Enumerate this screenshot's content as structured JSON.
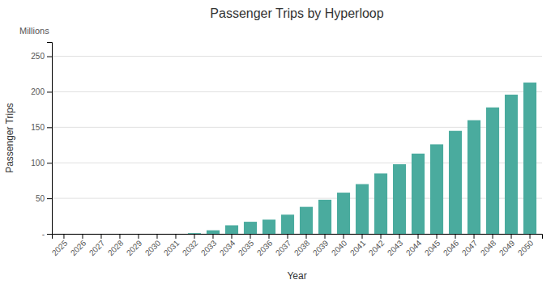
{
  "chart_data": {
    "type": "bar",
    "title": "Passenger Trips by Hyperloop",
    "x_label": "Year",
    "y_label": "Passenger Trips",
    "annotations": [
      "Millions"
    ],
    "categories": [
      "2025",
      "2026",
      "2027",
      "2028",
      "2029",
      "2030",
      "2031",
      "2032",
      "2033",
      "2034",
      "2035",
      "2036",
      "2037",
      "2038",
      "2039",
      "2040",
      "2041",
      "2042",
      "2043",
      "2044",
      "2045",
      "2046",
      "2047",
      "2048",
      "2049",
      "2050"
    ],
    "values": [
      0,
      0,
      0,
      0,
      0,
      0,
      0,
      1,
      5,
      12,
      17,
      20,
      27,
      38,
      48,
      58,
      70,
      85,
      98,
      113,
      126,
      145,
      160,
      178,
      196,
      213
    ],
    "color": "#4aab9e",
    "ylim": [
      0,
      270
    ],
    "yticks": [
      {
        "value": 0,
        "label": "-"
      },
      50,
      100,
      150,
      200,
      250
    ],
    "grid": true
  }
}
